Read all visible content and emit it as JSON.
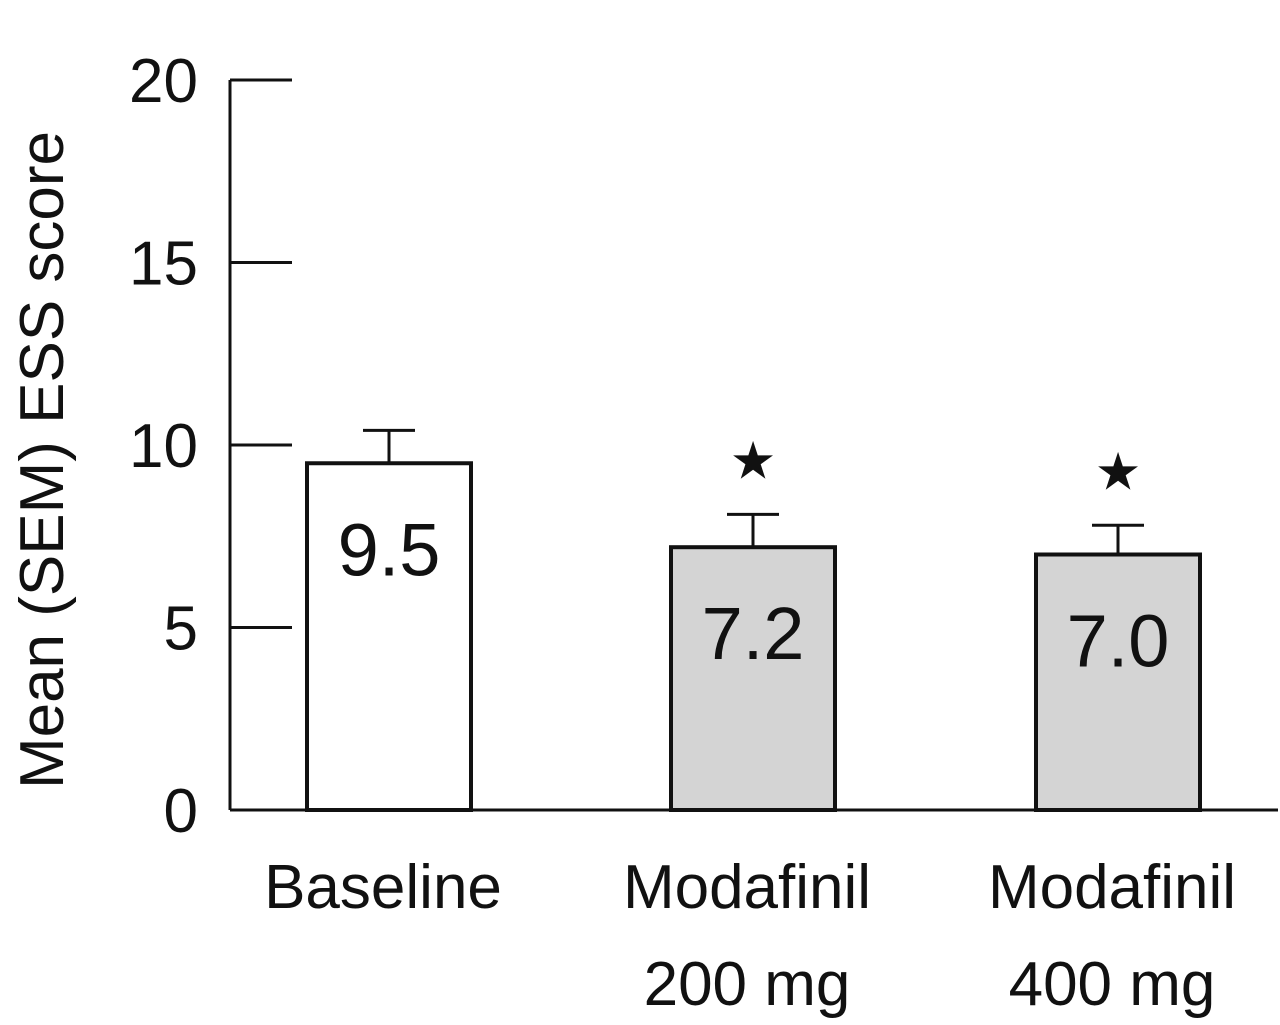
{
  "colors": {
    "baseline_bar": "#ffffff",
    "modafinil_bar": "#d4d4d4",
    "stroke": "#111111",
    "background": "#ffffff"
  },
  "chart_data": {
    "type": "bar",
    "title": "",
    "ylabel": "Mean (SEM) ESS score",
    "xlabel": "",
    "ylim": [
      0,
      20
    ],
    "yticks": [
      0,
      5,
      10,
      15,
      20
    ],
    "grid": false,
    "legend": "none",
    "categories": [
      {
        "line1": "Baseline",
        "line2": ""
      },
      {
        "line1": "Modafinil",
        "line2": "200 mg"
      },
      {
        "line1": "Modafinil",
        "line2": "400 mg"
      }
    ],
    "values": [
      9.5,
      7.2,
      7.0
    ],
    "value_labels": [
      "9.5",
      "7.2",
      "7.0"
    ],
    "sem": [
      0.9,
      0.9,
      0.8
    ],
    "significance": [
      "",
      "★",
      "★"
    ],
    "bar_fill_keys": [
      "baseline_bar",
      "modafinil_bar",
      "modafinil_bar"
    ]
  }
}
